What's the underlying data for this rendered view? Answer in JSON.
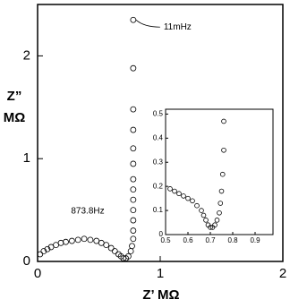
{
  "chart_data": [
    {
      "type": "scatter",
      "xlabel": "Z’  MΩ",
      "ylabel": [
        "Z”",
        "MΩ"
      ],
      "annotations": [
        "11mHz",
        "873.8Hz"
      ],
      "x": [
        0.02,
        0.05,
        0.08,
        0.11,
        0.15,
        0.19,
        0.23,
        0.28,
        0.33,
        0.38,
        0.43,
        0.48,
        0.52,
        0.56,
        0.6,
        0.63,
        0.66,
        0.68,
        0.7,
        0.72,
        0.74,
        0.76,
        0.77,
        0.78,
        0.78,
        0.78,
        0.78,
        0.78,
        0.78,
        0.78,
        0.78,
        0.78,
        0.78,
        0.78,
        0.78,
        0.78
      ],
      "values": [
        0.07,
        0.1,
        0.12,
        0.14,
        0.16,
        0.18,
        0.19,
        0.2,
        0.21,
        0.22,
        0.21,
        0.2,
        0.18,
        0.16,
        0.13,
        0.1,
        0.07,
        0.05,
        0.03,
        0.03,
        0.05,
        0.1,
        0.15,
        0.22,
        0.3,
        0.4,
        0.5,
        0.6,
        0.7,
        0.8,
        0.95,
        1.1,
        1.28,
        1.48,
        1.88,
        2.35
      ],
      "color": "#000000",
      "xlim": [
        0,
        2
      ],
      "ylim": [
        0,
        2.5
      ],
      "xticks": [
        0,
        1,
        2
      ],
      "yticks": [
        0,
        1,
        2
      ]
    },
    {
      "type": "scatter",
      "x": [
        0.52,
        0.54,
        0.56,
        0.58,
        0.6,
        0.62,
        0.64,
        0.66,
        0.67,
        0.68,
        0.69,
        0.7,
        0.71,
        0.72,
        0.73,
        0.74,
        0.745,
        0.75,
        0.755,
        0.76,
        0.76
      ],
      "values": [
        0.19,
        0.18,
        0.17,
        0.16,
        0.15,
        0.14,
        0.12,
        0.1,
        0.08,
        0.06,
        0.04,
        0.03,
        0.03,
        0.04,
        0.06,
        0.09,
        0.13,
        0.18,
        0.25,
        0.35,
        0.47
      ],
      "color": "#000000",
      "xlim": [
        0.5,
        0.98
      ],
      "ylim": [
        0,
        0.52
      ],
      "xticks": [
        0.5,
        0.6,
        0.7,
        0.8,
        0.9
      ],
      "yticks": [
        0,
        0.1,
        0.2,
        0.3,
        0.4,
        0.5
      ]
    }
  ]
}
